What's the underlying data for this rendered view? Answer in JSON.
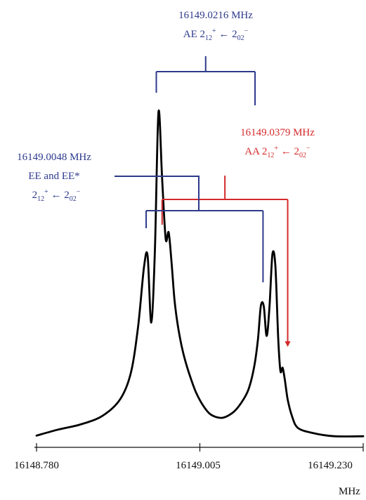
{
  "colors": {
    "spectrum": "#000000",
    "ae": "#2d3a8c",
    "ee": "#2d3a8c",
    "aa": "#d42a2a",
    "axis": "#111111"
  },
  "chart_data": {
    "type": "line",
    "title": "",
    "xlabel": "MHz",
    "ylabel": "",
    "xlim": [
      16148.78,
      16149.23
    ],
    "ylim": [
      0,
      1
    ],
    "grid": false,
    "legend": "none",
    "x_ticks": [
      "16148.780",
      "16149.005",
      "16149.230"
    ],
    "series": [
      {
        "x": [
          16148.78,
          16148.81,
          16148.84,
          16148.87,
          16148.895,
          16148.91,
          16148.92,
          16148.928,
          16148.933,
          16148.938,
          16148.943,
          16148.948,
          16148.953,
          16148.958,
          16148.962,
          16148.966,
          16148.97,
          16148.974,
          16148.978,
          16148.982,
          16148.987,
          16148.993,
          16149.0,
          16149.01,
          16149.02,
          16149.035,
          16149.05,
          16149.062,
          16149.072,
          16149.08,
          16149.085,
          16149.089,
          16149.093,
          16149.097,
          16149.101,
          16149.105,
          16149.109,
          16149.113,
          16149.116,
          16149.119,
          16149.122,
          16149.126,
          16149.132,
          16149.14,
          16149.16,
          16149.19,
          16149.23
        ],
        "y": [
          0.012,
          0.03,
          0.045,
          0.07,
          0.12,
          0.2,
          0.34,
          0.515,
          0.55,
          0.35,
          0.56,
          0.98,
          0.78,
          0.6,
          0.62,
          0.53,
          0.42,
          0.35,
          0.3,
          0.26,
          0.22,
          0.18,
          0.14,
          0.1,
          0.075,
          0.065,
          0.08,
          0.11,
          0.15,
          0.22,
          0.3,
          0.4,
          0.4,
          0.31,
          0.4,
          0.555,
          0.52,
          0.3,
          0.205,
          0.215,
          0.18,
          0.12,
          0.07,
          0.035,
          0.02,
          0.01,
          0.01
        ]
      }
    ],
    "annotations": [
      {
        "group": "ae",
        "frequency_text": "16149.0216 MHz",
        "label_text": "AE 2",
        "sub1": "12",
        "sup1": "+",
        "arrow_text": " ← 2",
        "sub2": "02",
        "sup2": "−",
        "component_x": [
          16148.945,
          16149.081
        ]
      },
      {
        "group": "aa",
        "frequency_text": "16149.0379 MHz",
        "label_text": "AA 2",
        "sub1": "12",
        "sup1": "+",
        "arrow_text": " ← 2",
        "sub2": "02",
        "sup2": "−",
        "component_x": [
          16148.953,
          16149.126
        ]
      },
      {
        "group": "ee",
        "frequency_text": "16149.0048 MHz",
        "label_text": "EE and EE*",
        "line2_text": "2",
        "sub1": "12",
        "sup1": "+",
        "arrow_text": " ← 2",
        "sub2": "02",
        "sup2": "−",
        "component_x": [
          16148.931,
          16149.092
        ]
      }
    ]
  }
}
